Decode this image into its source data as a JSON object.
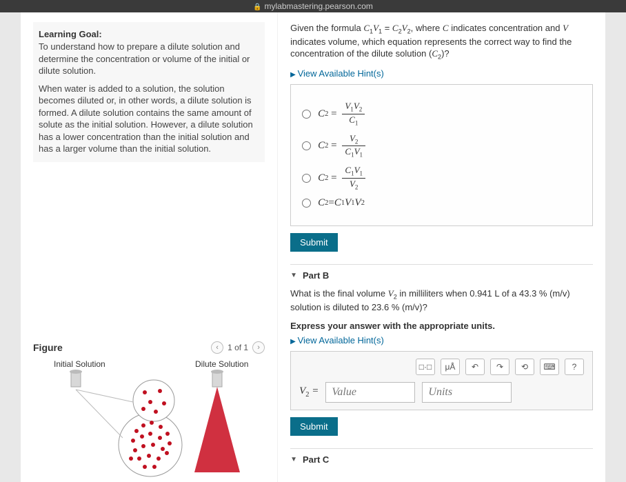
{
  "url": "mylabmastering.pearson.com",
  "learning_goal": {
    "title": "Learning Goal:",
    "p1": "To understand how to prepare a dilute solution and determine the concentration or volume of the initial or dilute solution.",
    "p2": "When water is added to a solution, the solution becomes diluted or, in other words, a dilute solution is formed. A dilute solution contains the same amount of solute as the initial solution. However, a dilute solution has a lower concentration than the initial solution and has a larger volume than the initial solution."
  },
  "figure": {
    "title": "Figure",
    "counter": "1 of 1",
    "label_initial": "Initial Solution",
    "label_dilute": "Dilute Solution"
  },
  "partA": {
    "prompt_html": "Given the formula <span class='mi'>C</span><span class='sub'>1</span><span class='mi'>V</span><span class='sub'>1</span> = <span class='mi'>C</span><span class='sub'>2</span><span class='mi'>V</span><span class='sub'>2</span>, where <span class='mi'>C</span> indicates concentration and <span class='mi'>V</span> indicates volume, which equation represents the correct way to find the concentration of the dilute solution (<span class='mi'>C</span><span class='sub'>2</span>)?",
    "hints": "View Available Hint(s)",
    "choices": [
      {
        "lhs": "C₂ =",
        "num": "V₁V₂",
        "den": "C₁",
        "frac": true
      },
      {
        "lhs": "C₂ =",
        "num": "V₂",
        "den": "C₁V₁",
        "frac": true
      },
      {
        "lhs": "C₂ =",
        "num": "C₁V₁",
        "den": "V₂",
        "frac": true
      },
      {
        "lhs": "C₂ = C₁V₁V₂",
        "frac": false
      }
    ],
    "submit": "Submit"
  },
  "partB": {
    "title": "Part B",
    "prompt_html": "What is the final volume <span class='mi'>V</span><span class='sub'>2</span> in milliliters when 0.941 L of a 43.3 % (m/v) solution is diluted to 23.6 % (m/v)?",
    "instruct": "Express your answer with the appropriate units.",
    "hints": "View Available Hint(s)",
    "var_label": "V₂ =",
    "value_ph": "Value",
    "units_ph": "Units",
    "submit": "Submit",
    "toolbar": [
      "□·□",
      "μÅ",
      "↶",
      "↷",
      "⟲",
      "⌨",
      "?"
    ]
  },
  "partC": {
    "title": "Part C"
  },
  "colors": {
    "submit_bg": "#0a6e8a",
    "link": "#006699"
  }
}
